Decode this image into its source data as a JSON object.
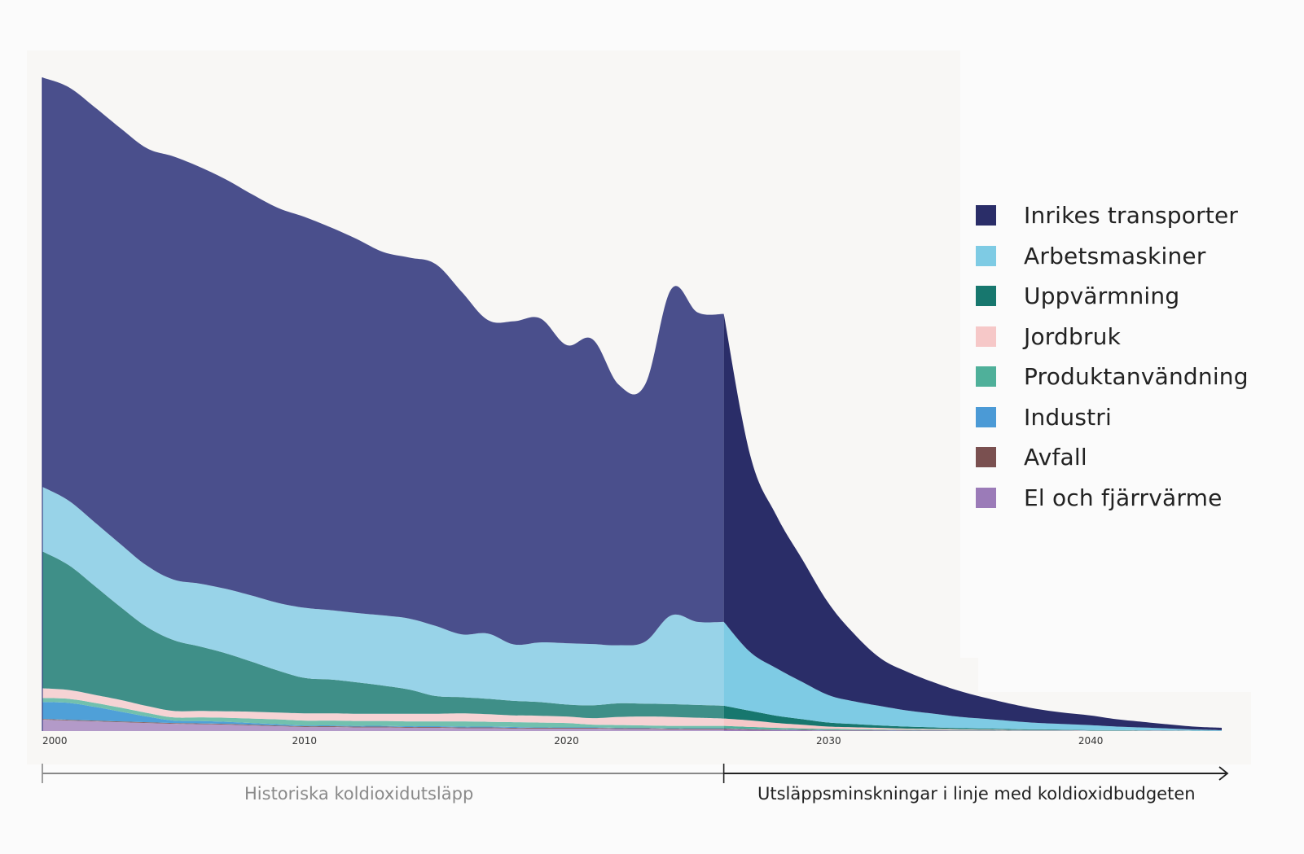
{
  "chart_data": {
    "type": "area",
    "stacked": true,
    "title": "",
    "xlabel": "",
    "ylabel": "",
    "grid": false,
    "x_ticks": [
      2000,
      2010,
      2020,
      2030,
      2040
    ],
    "x_range": [
      2000,
      2045
    ],
    "y_range": [
      0,
      82
    ],
    "projection_start": 2026,
    "legend_position": "right",
    "x": [
      2000,
      2001,
      2002,
      2003,
      2004,
      2005,
      2006,
      2007,
      2008,
      2009,
      2010,
      2011,
      2012,
      2013,
      2014,
      2015,
      2016,
      2017,
      2018,
      2019,
      2020,
      2021,
      2022,
      2023,
      2024,
      2025,
      2026,
      2027,
      2028,
      2029,
      2030,
      2031,
      2032,
      2033,
      2034,
      2035,
      2036,
      2037,
      2038,
      2039,
      2040,
      2041,
      2042,
      2043,
      2044,
      2045
    ],
    "series": [
      {
        "name": "El och fjärrvärme",
        "color": "#9b7bb8",
        "history_color": "#b39ac8",
        "values": [
          1.4,
          1.3,
          1.2,
          1.1,
          1.0,
          0.9,
          0.85,
          0.8,
          0.7,
          0.6,
          0.5,
          0.5,
          0.45,
          0.45,
          0.4,
          0.4,
          0.35,
          0.35,
          0.3,
          0.3,
          0.3,
          0.3,
          0.25,
          0.25,
          0.2,
          0.2,
          0.2,
          0.15,
          0.12,
          0.1,
          0.08,
          0.07,
          0.06,
          0.05,
          0.05,
          0.04,
          0.04,
          0.03,
          0.03,
          0.03,
          0.02,
          0.02,
          0.02,
          0.02,
          0.01,
          0.01
        ]
      },
      {
        "name": "Avfall",
        "color": "#7a5050",
        "history_color": "#8a6a6a",
        "values": [
          0.1,
          0.1,
          0.1,
          0.1,
          0.1,
          0.1,
          0.1,
          0.1,
          0.1,
          0.1,
          0.1,
          0.1,
          0.1,
          0.1,
          0.1,
          0.1,
          0.1,
          0.1,
          0.1,
          0.1,
          0.1,
          0.1,
          0.1,
          0.1,
          0.1,
          0.1,
          0.1,
          0.08,
          0.06,
          0.05,
          0.04,
          0.03,
          0.03,
          0.02,
          0.02,
          0.02,
          0.02,
          0.01,
          0.01,
          0.01,
          0.01,
          0.01,
          0.01,
          0.01,
          0.0,
          0.0
        ]
      },
      {
        "name": "Industri",
        "color": "#4b9ad6",
        "history_color": "#4fa0d8",
        "values": [
          2.1,
          2.1,
          1.7,
          1.2,
          0.7,
          0.3,
          0.3,
          0.25,
          0.2,
          0.15,
          0.1,
          0.1,
          0.1,
          0.1,
          0.1,
          0.1,
          0.1,
          0.1,
          0.1,
          0.05,
          0.05,
          0.05,
          0.05,
          0.05,
          0.05,
          0.05,
          0.05,
          0.04,
          0.03,
          0.03,
          0.02,
          0.02,
          0.02,
          0.01,
          0.01,
          0.01,
          0.01,
          0.01,
          0.01,
          0.01,
          0.0,
          0.0,
          0.0,
          0.0,
          0.0,
          0.0
        ]
      },
      {
        "name": "Produktanvändning",
        "color": "#4fb09a",
        "history_color": "#72c0ae",
        "values": [
          0.5,
          0.5,
          0.5,
          0.5,
          0.45,
          0.4,
          0.45,
          0.5,
          0.55,
          0.6,
          0.6,
          0.6,
          0.6,
          0.6,
          0.6,
          0.6,
          0.65,
          0.6,
          0.6,
          0.6,
          0.55,
          0.35,
          0.35,
          0.3,
          0.3,
          0.3,
          0.3,
          0.25,
          0.2,
          0.15,
          0.12,
          0.1,
          0.08,
          0.07,
          0.06,
          0.05,
          0.04,
          0.03,
          0.03,
          0.02,
          0.02,
          0.02,
          0.01,
          0.01,
          0.01,
          0.0
        ]
      },
      {
        "name": "Jordbruk",
        "color": "#f6c8c8",
        "history_color": "#f6d3d4",
        "values": [
          1.2,
          1.1,
          1.0,
          0.95,
          0.85,
          0.8,
          0.8,
          0.8,
          0.85,
          0.85,
          0.9,
          0.9,
          0.9,
          0.9,
          0.95,
          0.95,
          1.0,
          0.95,
          0.85,
          0.85,
          0.8,
          0.8,
          1.0,
          1.1,
          1.1,
          1.0,
          0.9,
          0.8,
          0.6,
          0.45,
          0.3,
          0.25,
          0.2,
          0.15,
          0.12,
          0.1,
          0.08,
          0.06,
          0.05,
          0.04,
          0.03,
          0.02,
          0.02,
          0.01,
          0.01,
          0.0
        ]
      },
      {
        "name": "Uppvärmning",
        "color": "#17776e",
        "history_color": "#3f8f88",
        "values": [
          17.0,
          15.5,
          13.5,
          11.5,
          9.8,
          8.8,
          8.0,
          7.2,
          6.2,
          5.2,
          4.4,
          4.2,
          3.9,
          3.5,
          3.0,
          2.2,
          2.0,
          1.9,
          1.8,
          1.7,
          1.5,
          1.6,
          1.7,
          1.6,
          1.6,
          1.6,
          1.6,
          1.2,
          0.9,
          0.7,
          0.5,
          0.4,
          0.3,
          0.25,
          0.2,
          0.15,
          0.12,
          0.1,
          0.08,
          0.06,
          0.05,
          0.04,
          0.03,
          0.02,
          0.01,
          0.0
        ]
      },
      {
        "name": "Arbetsmaskiner",
        "color": "#7ecbe4",
        "history_color": "#98d3e8",
        "values": [
          8.0,
          8.0,
          7.9,
          7.8,
          7.6,
          7.5,
          7.8,
          8.0,
          8.2,
          8.4,
          8.7,
          8.6,
          8.6,
          8.7,
          8.8,
          8.7,
          7.8,
          8.1,
          7.0,
          7.4,
          7.6,
          7.6,
          7.2,
          7.7,
          11.0,
          10.3,
          10.4,
          7.3,
          5.9,
          4.6,
          3.4,
          2.8,
          2.4,
          2.0,
          1.7,
          1.4,
          1.2,
          1.0,
          0.8,
          0.7,
          0.6,
          0.45,
          0.35,
          0.25,
          0.15,
          0.1
        ]
      },
      {
        "name": "Inrikes transporter",
        "color": "#2a2d68",
        "history_color": "#4a4f8c",
        "values": [
          50.8,
          51.3,
          51.5,
          51.6,
          51.8,
          52.5,
          51.7,
          50.8,
          49.8,
          49.0,
          48.5,
          47.5,
          46.4,
          45.1,
          44.8,
          44.9,
          42.5,
          38.9,
          40.1,
          40.2,
          37.0,
          37.8,
          32.3,
          31.9,
          40.5,
          38.4,
          38.2,
          24.5,
          19.0,
          15.2,
          11.4,
          8.3,
          5.9,
          4.8,
          3.9,
          3.2,
          2.6,
          2.1,
          1.7,
          1.4,
          1.2,
          0.9,
          0.7,
          0.5,
          0.35,
          0.3
        ]
      }
    ]
  },
  "legend": {
    "items": [
      {
        "label": "Inrikes transporter",
        "color": "#2a2d68"
      },
      {
        "label": "Arbetsmaskiner",
        "color": "#7ecbe4"
      },
      {
        "label": "Uppvärmning",
        "color": "#17776e"
      },
      {
        "label": "Jordbruk",
        "color": "#f6c8c8"
      },
      {
        "label": "Produktanvändning",
        "color": "#4fb09a"
      },
      {
        "label": "Industri",
        "color": "#4b9ad6"
      },
      {
        "label": "Avfall",
        "color": "#7a5050"
      },
      {
        "label": "El och fjärrvärme",
        "color": "#9b7bb8"
      }
    ]
  },
  "periods": {
    "historical_label": "Historiska koldioxidutsläpp",
    "projection_label": "Utsläppsminskningar i linje med koldioxidbudgeten",
    "historical_color": "#888888",
    "projection_color": "#222222"
  }
}
